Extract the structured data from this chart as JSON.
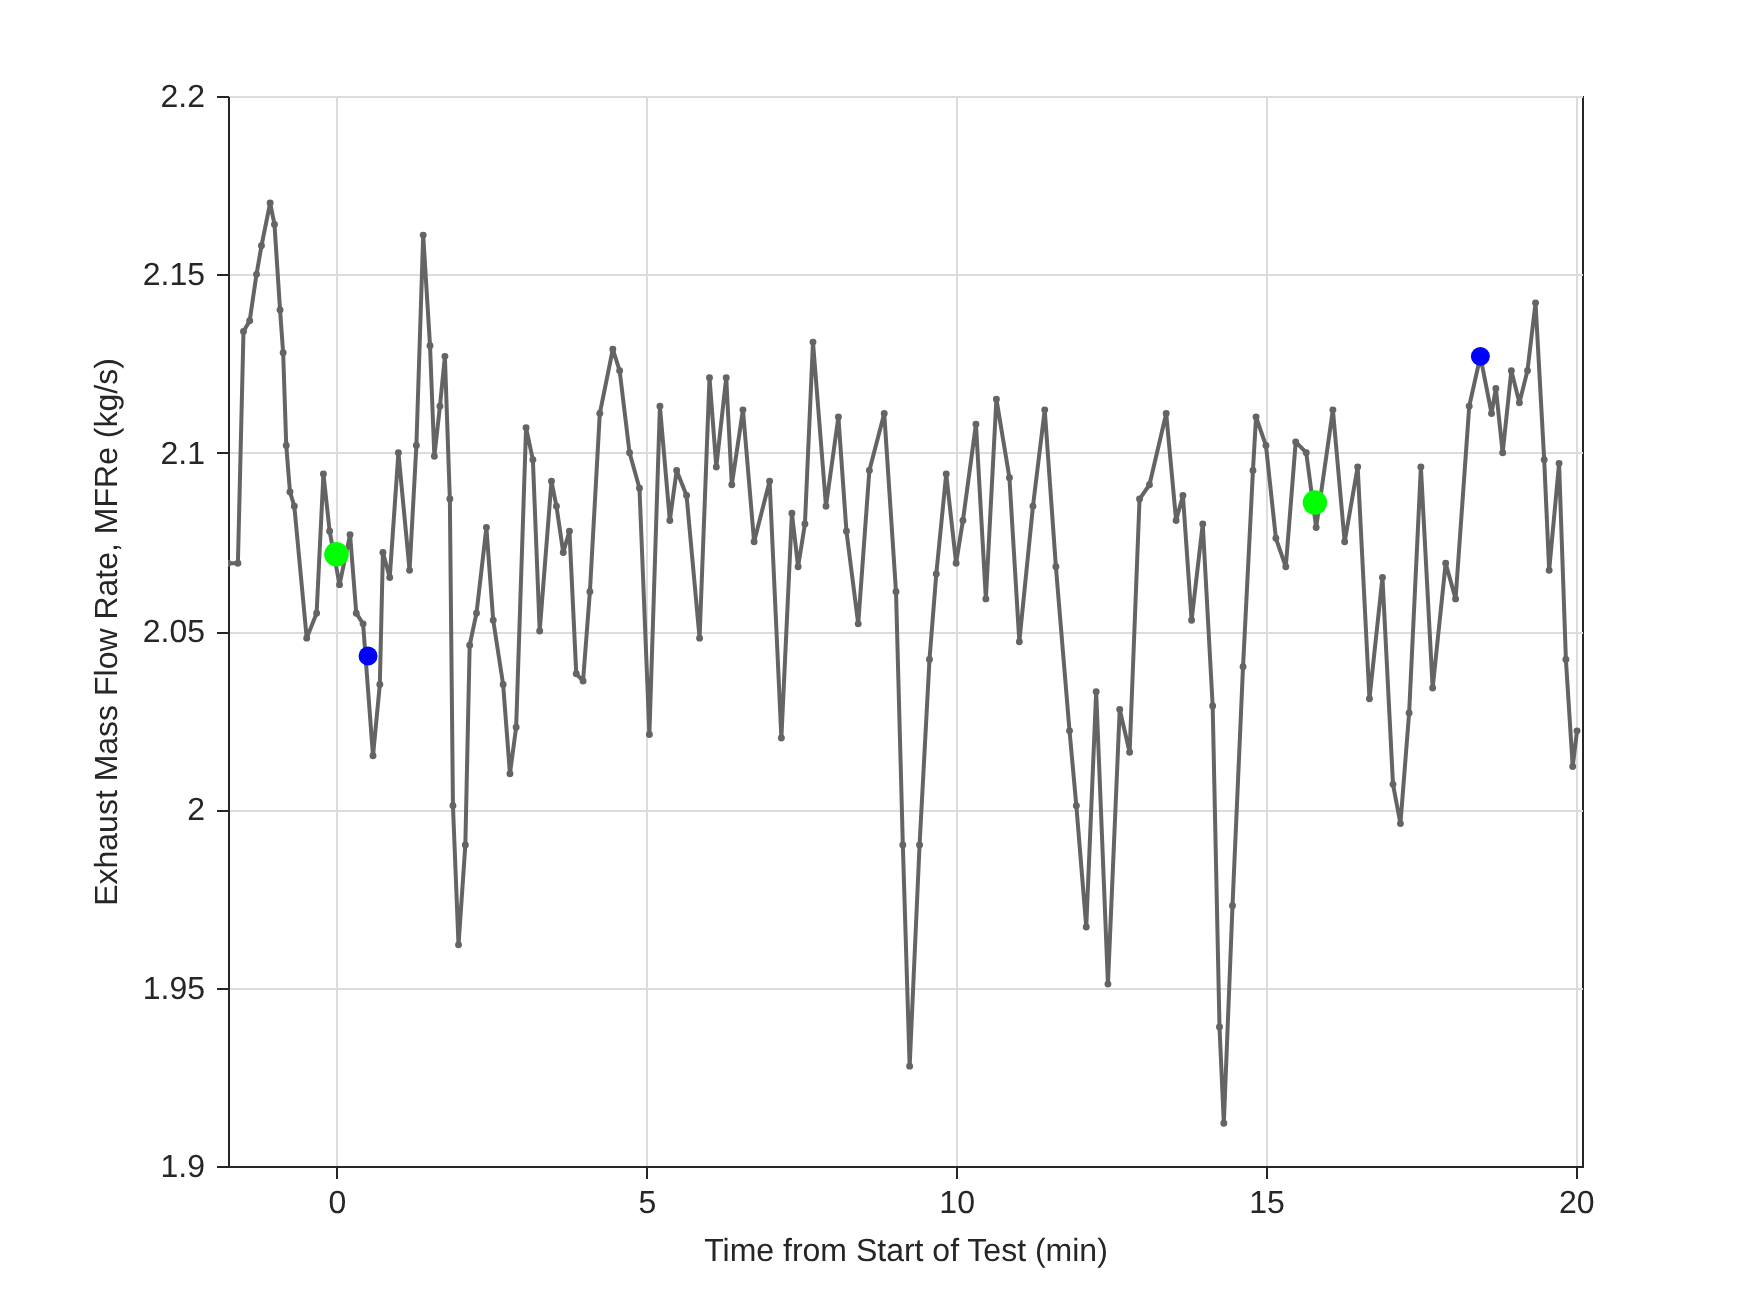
{
  "chart_data": {
    "type": "line",
    "xlabel": "Time from Start of Test (min)",
    "ylabel": "Exhaust Mass Flow Rate, MFRe (kg/s)",
    "xlim": [
      -1.75,
      20.1
    ],
    "ylim": [
      1.9,
      2.2
    ],
    "xticks": [
      0,
      5,
      10,
      15,
      20
    ],
    "yticks": [
      1.9,
      1.95,
      2,
      2.05,
      2.1,
      2.15,
      2.2
    ],
    "grid": true,
    "series": [
      {
        "color": "#646464",
        "marker": "circle",
        "line_style": "solid",
        "x": [
          -1.75,
          -1.59,
          -1.5,
          -1.4,
          -1.29,
          -1.21,
          -1.07,
          -1.0,
          -0.91,
          -0.86,
          -0.81,
          -0.75,
          -0.68,
          -0.48,
          -0.32,
          -0.21,
          -0.11,
          0.05,
          0.22,
          0.32,
          0.43,
          0.59,
          0.7,
          0.75,
          0.86,
          1.0,
          1.18,
          1.29,
          1.4,
          1.51,
          1.58,
          1.67,
          1.75,
          1.83,
          1.88,
          1.97,
          2.08,
          2.15,
          2.26,
          2.42,
          2.53,
          2.69,
          2.8,
          2.9,
          3.06,
          3.17,
          3.28,
          3.47,
          3.55,
          3.66,
          3.76,
          3.87,
          3.98,
          4.09,
          4.25,
          4.46,
          4.57,
          4.73,
          4.89,
          5.05,
          5.22,
          5.38,
          5.49,
          5.65,
          5.86,
          6.02,
          6.13,
          6.29,
          6.38,
          6.56,
          6.74,
          6.99,
          7.18,
          7.35,
          7.45,
          7.56,
          7.69,
          7.9,
          8.1,
          8.23,
          8.42,
          8.6,
          8.84,
          9.03,
          9.14,
          9.25,
          9.41,
          9.57,
          9.68,
          9.84,
          10.0,
          10.11,
          10.32,
          10.48,
          10.65,
          10.86,
          11.02,
          11.24,
          11.43,
          11.61,
          11.83,
          11.94,
          12.1,
          12.26,
          12.45,
          12.64,
          12.8,
          12.96,
          13.12,
          13.39,
          13.55,
          13.66,
          13.8,
          13.98,
          14.14,
          14.25,
          14.32,
          14.46,
          14.63,
          14.79,
          14.84,
          15.0,
          15.16,
          15.32,
          15.48,
          15.65,
          15.81,
          16.08,
          16.27,
          16.48,
          16.67,
          16.88,
          17.05,
          17.17,
          17.31,
          17.5,
          17.69,
          17.9,
          18.06,
          18.28,
          18.46,
          18.64,
          18.71,
          18.82,
          18.96,
          19.09,
          19.22,
          19.35,
          19.49,
          19.57,
          19.73,
          19.84,
          19.95,
          20.02
        ],
        "values": [
          2.069,
          2.069,
          2.134,
          2.137,
          2.15,
          2.158,
          2.17,
          2.164,
          2.14,
          2.128,
          2.102,
          2.089,
          2.085,
          2.048,
          2.055,
          2.094,
          2.078,
          2.063,
          2.077,
          2.055,
          2.052,
          2.015,
          2.035,
          2.072,
          2.065,
          2.1,
          2.067,
          2.102,
          2.161,
          2.13,
          2.099,
          2.113,
          2.127,
          2.087,
          2.001,
          1.962,
          1.99,
          2.046,
          2.055,
          2.079,
          2.053,
          2.035,
          2.01,
          2.023,
          2.107,
          2.098,
          2.05,
          2.092,
          2.085,
          2.072,
          2.078,
          2.038,
          2.036,
          2.061,
          2.111,
          2.129,
          2.123,
          2.1,
          2.09,
          2.021,
          2.113,
          2.081,
          2.095,
          2.088,
          2.048,
          2.121,
          2.096,
          2.121,
          2.091,
          2.112,
          2.075,
          2.092,
          2.02,
          2.083,
          2.068,
          2.08,
          2.131,
          2.085,
          2.11,
          2.078,
          2.052,
          2.095,
          2.111,
          2.061,
          1.99,
          1.928,
          1.99,
          2.042,
          2.066,
          2.094,
          2.069,
          2.081,
          2.108,
          2.059,
          2.115,
          2.093,
          2.047,
          2.085,
          2.112,
          2.068,
          2.022,
          2.001,
          1.967,
          2.033,
          1.951,
          2.028,
          2.016,
          2.087,
          2.091,
          2.111,
          2.081,
          2.088,
          2.053,
          2.08,
          2.029,
          1.939,
          1.912,
          1.973,
          2.04,
          2.095,
          2.11,
          2.102,
          2.076,
          2.068,
          2.103,
          2.1,
          2.079,
          2.112,
          2.075,
          2.096,
          2.031,
          2.065,
          2.007,
          1.996,
          2.027,
          2.096,
          2.034,
          2.069,
          2.059,
          2.113,
          2.127,
          2.111,
          2.118,
          2.1,
          2.123,
          2.114,
          2.123,
          2.142,
          2.098,
          2.067,
          2.097,
          2.042,
          2.012,
          2.022
        ]
      },
      {
        "type": "scatter",
        "color": "#00ff00",
        "marker": "circle",
        "x": [
          0,
          15.79
        ],
        "values": [
          2.0715,
          2.086
        ]
      },
      {
        "type": "scatter",
        "color": "#0000ff",
        "marker": "circle",
        "x": [
          0.51,
          18.46
        ],
        "values": [
          2.043,
          2.127
        ]
      }
    ]
  }
}
